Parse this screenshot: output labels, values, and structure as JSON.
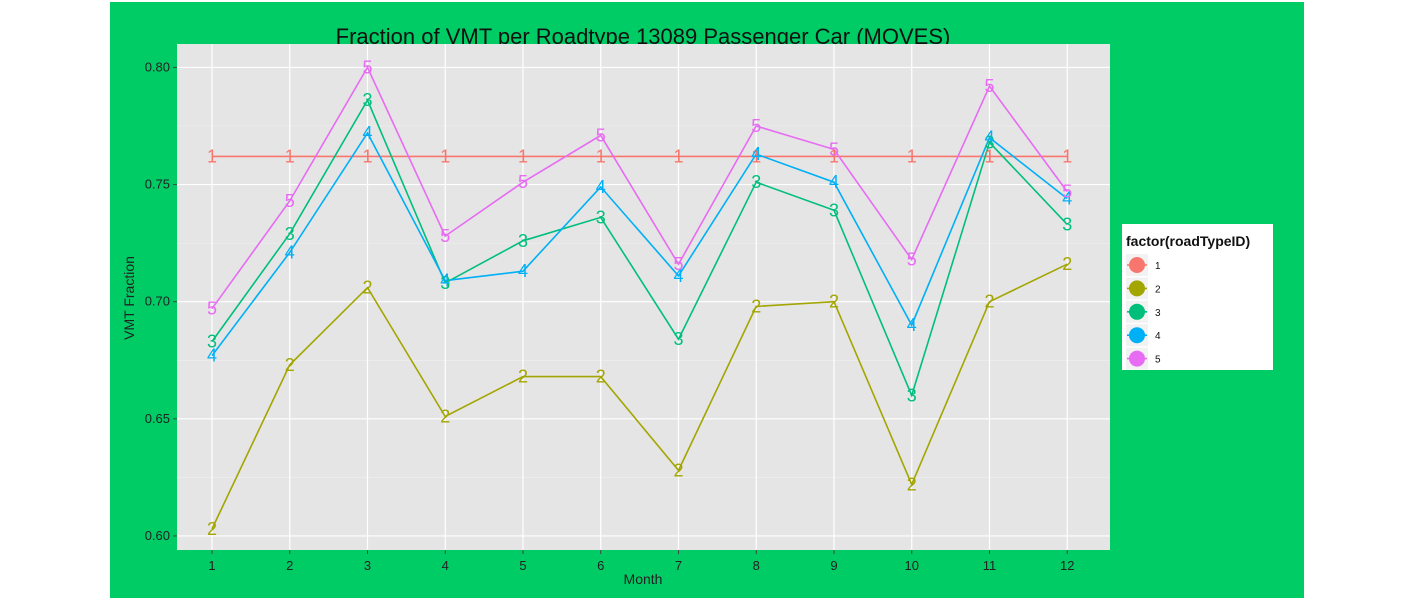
{
  "chart_data": {
    "type": "line",
    "title": "Fraction of VMT per Roadtype 13089 Passenger Car (MOVES)",
    "xlabel": "Month",
    "ylabel": "VMT Fraction",
    "x": [
      1,
      2,
      3,
      4,
      5,
      6,
      7,
      8,
      9,
      10,
      11,
      12
    ],
    "xlim": [
      0.55,
      12.55
    ],
    "ylim": [
      0.594,
      0.81
    ],
    "yticks": [
      0.6,
      0.65,
      0.7,
      0.75,
      0.8
    ],
    "ytick_labels": [
      "0.60",
      "0.65",
      "0.70",
      "0.75",
      "0.80"
    ],
    "grid": true,
    "legend": {
      "title": "factor(roadTypeID)",
      "placement": "right"
    },
    "series": [
      {
        "name": "1",
        "color": "#f8766d",
        "marker": "1",
        "values": [
          0.762,
          0.762,
          0.762,
          0.762,
          0.762,
          0.762,
          0.762,
          0.762,
          0.762,
          0.762,
          0.762,
          0.762
        ]
      },
      {
        "name": "2",
        "color": "#a3a500",
        "marker": "2",
        "values": [
          0.603,
          0.673,
          0.706,
          0.651,
          0.668,
          0.668,
          0.628,
          0.698,
          0.7,
          0.622,
          0.7,
          0.716
        ]
      },
      {
        "name": "3",
        "color": "#00bf7d",
        "marker": "3",
        "values": [
          0.683,
          0.729,
          0.786,
          0.708,
          0.726,
          0.736,
          0.684,
          0.751,
          0.739,
          0.66,
          0.768,
          0.733
        ]
      },
      {
        "name": "4",
        "color": "#00b0f6",
        "marker": "4",
        "values": [
          0.677,
          0.721,
          0.772,
          0.709,
          0.713,
          0.749,
          0.711,
          0.763,
          0.751,
          0.69,
          0.77,
          0.744
        ]
      },
      {
        "name": "5",
        "color": "#e76bf3",
        "marker": "5",
        "values": [
          0.697,
          0.743,
          0.8,
          0.728,
          0.751,
          0.771,
          0.716,
          0.775,
          0.765,
          0.718,
          0.792,
          0.747
        ]
      }
    ]
  }
}
